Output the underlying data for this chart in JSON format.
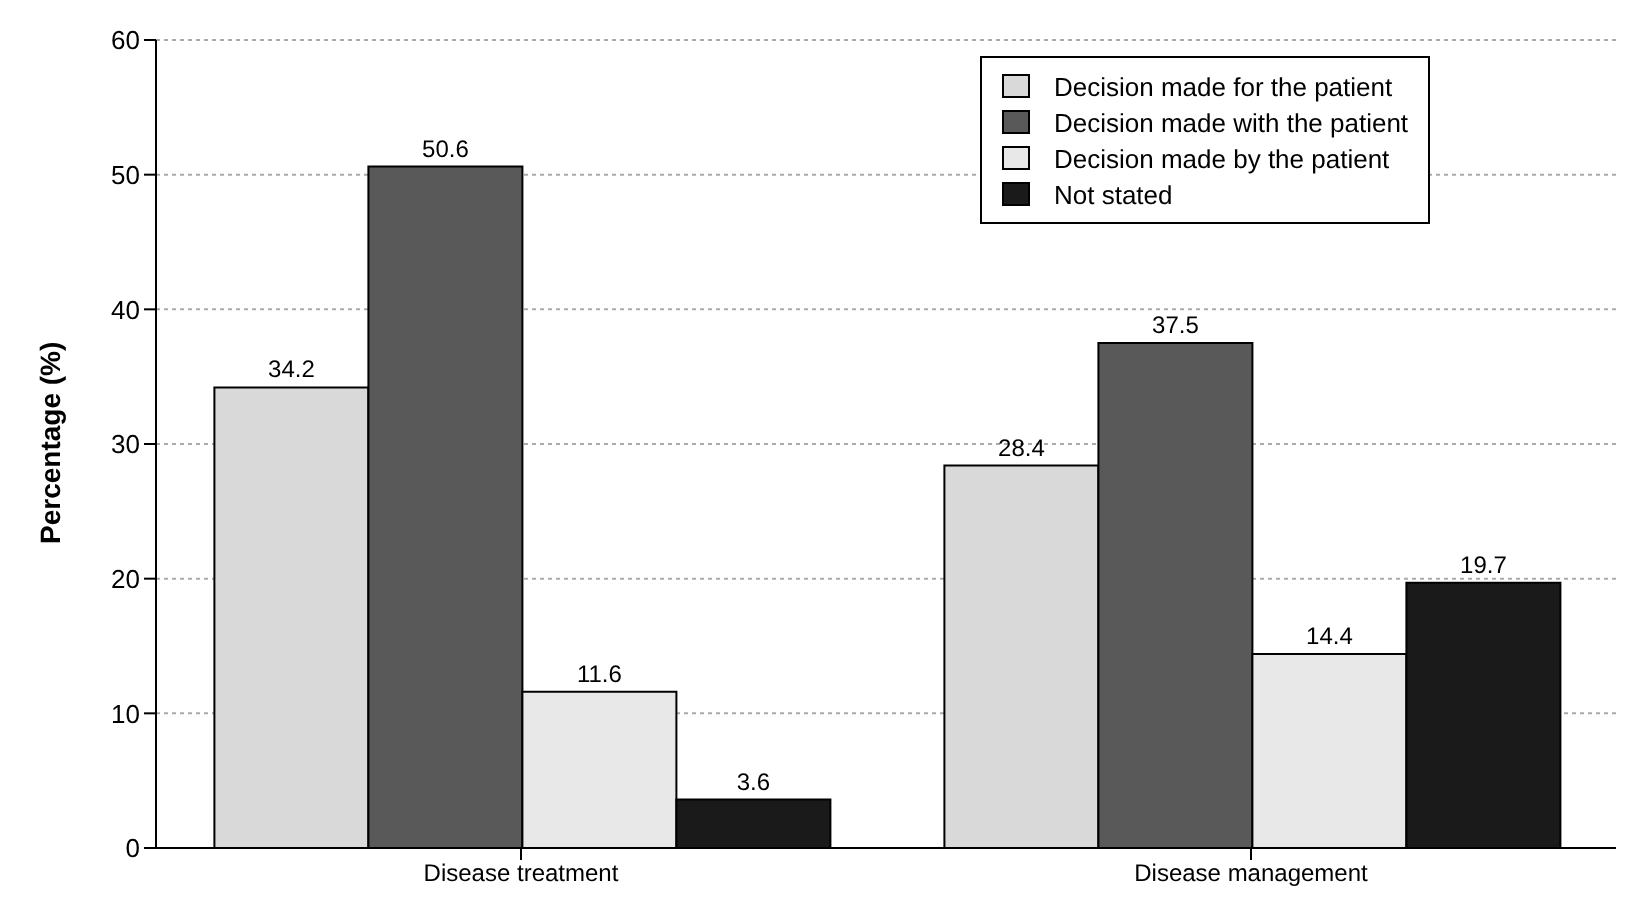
{
  "chart_data": {
    "type": "bar",
    "ylabel": "Percentage (%)",
    "categories": [
      "Disease treatment",
      "Disease management"
    ],
    "series": [
      {
        "name": "Decision made for the patient",
        "color": "#d9d9d9",
        "values": [
          34.2,
          28.4
        ]
      },
      {
        "name": "Decision made with the patient",
        "color": "#595959",
        "values": [
          50.6,
          37.5
        ]
      },
      {
        "name": "Decision made by the patient",
        "color": "#e8e8e8",
        "values": [
          11.6,
          14.4
        ]
      },
      {
        "name": "Not stated",
        "color": "#1a1a1a",
        "values": [
          3.6,
          19.7
        ]
      }
    ],
    "ylim": [
      0,
      60
    ],
    "yticks": [
      0,
      10,
      20,
      30,
      40,
      50,
      60
    ],
    "grid": "y",
    "legend": "top right",
    "data_labels": true
  }
}
